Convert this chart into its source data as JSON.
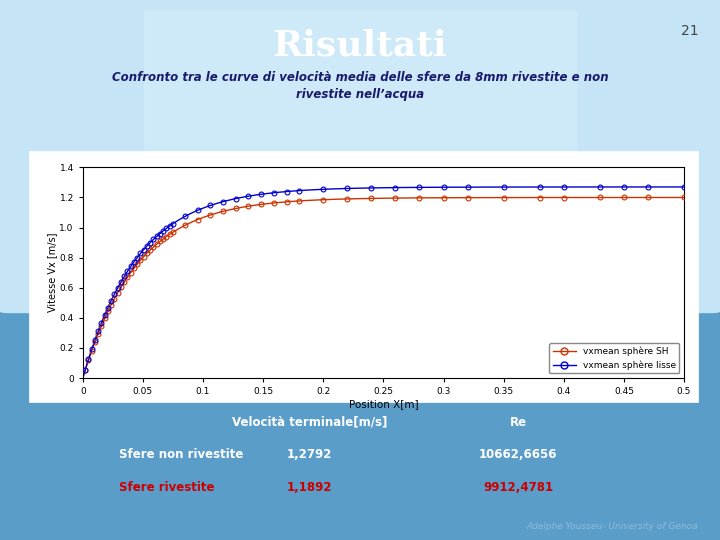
{
  "title": "Risultati",
  "slide_number": "21",
  "subtitle": "Confronto tra le curve di velocità media delle sfere da 8mm rivestite e non\nrivestite nell’acqua",
  "chart_ylabel": "Vitesse Vx [m/s]",
  "chart_xlabel": "Position X[m]",
  "legend_label1": "vxmean sphère SH",
  "legend_label2": "vxmean sphère lisse",
  "color1": "#CC3300",
  "color2": "#0000CC",
  "table_header_col2": "Velocità terminale[m/s]",
  "table_header_col3": "Re",
  "row1_label": "Sfere non rivestite",
  "row1_v": "1,2792",
  "row1_re": "10662,6656",
  "row2_label": "Sfere rivestite",
  "row2_v": "1,1892",
  "row2_re": "9912,4781",
  "row2_color": "#CC0000",
  "footnote": "Adelphe Yousseu- University of Genoa",
  "xlim": [
    0,
    0.5
  ],
  "ylim": [
    0,
    1.4
  ],
  "yticks": [
    0,
    0.2,
    0.4,
    0.6,
    0.8,
    1.0,
    1.2,
    1.4
  ],
  "xticks": [
    0,
    0.05,
    0.1,
    0.15,
    0.2,
    0.25,
    0.3,
    0.35,
    0.4,
    0.45,
    0.5
  ],
  "bg_header": "#B8DCF0",
  "bg_body": "#5B9DC9",
  "v1_terminal": 1.2,
  "v2_terminal": 1.27,
  "k_curve": 22
}
